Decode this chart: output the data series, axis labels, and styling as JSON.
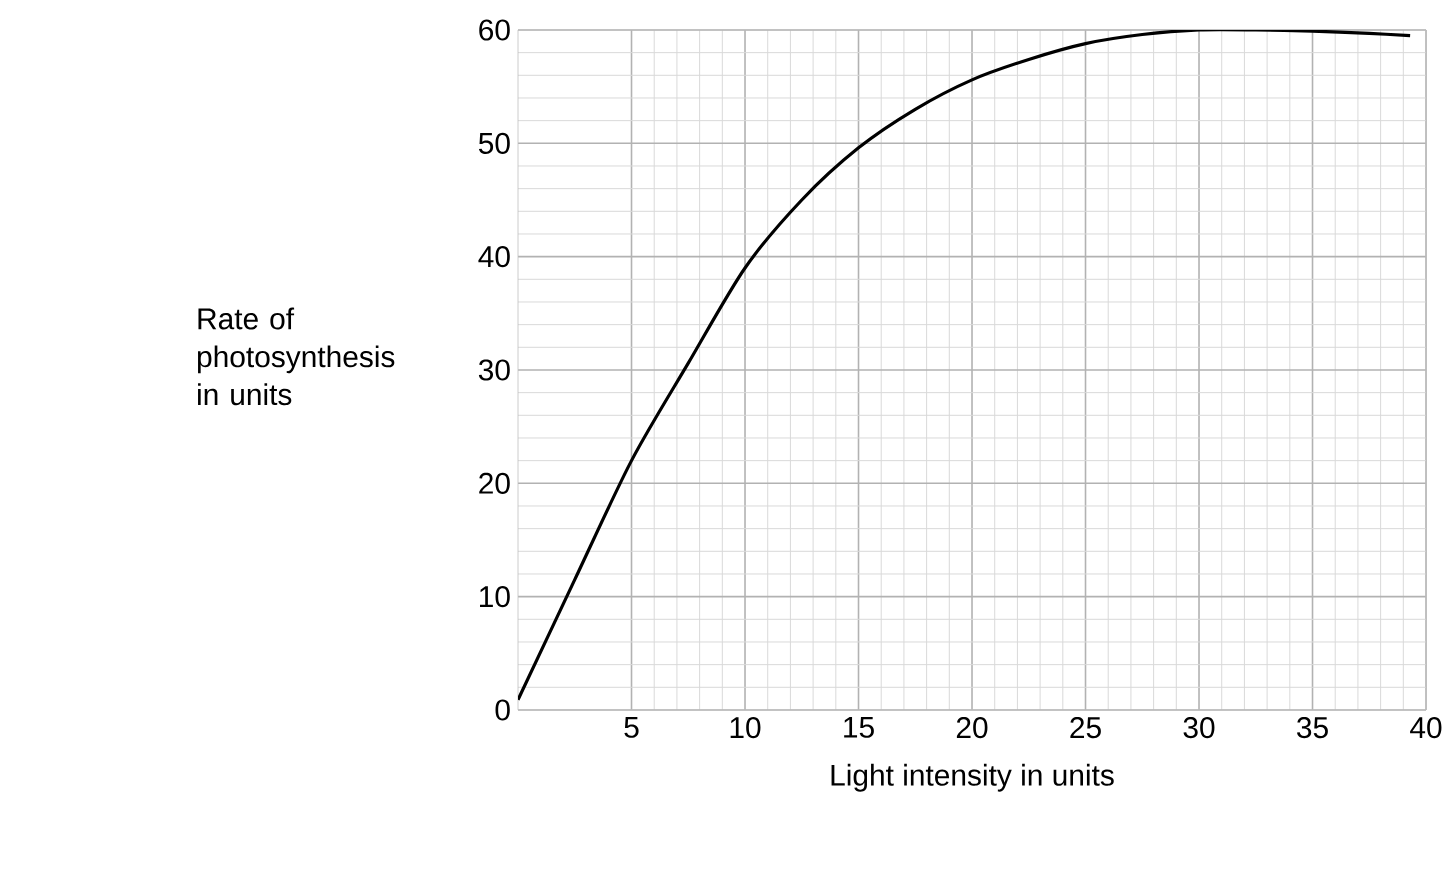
{
  "chart_data": {
    "type": "line",
    "xlabel": "Light intensity in units",
    "ylabel": "Rate of photosynthesis in units",
    "x": [
      0,
      2.5,
      5,
      7.5,
      10,
      12.5,
      15,
      17.5,
      20,
      22.5,
      25,
      27.5,
      30,
      32.5,
      35,
      37.5,
      39.3
    ],
    "series": [
      {
        "color": "#000000",
        "values": [
          0.9,
          11.5,
          22,
          30.6,
          39,
          45,
          49.6,
          53,
          55.6,
          57.4,
          58.8,
          59.6,
          60,
          60,
          59.9,
          59.7,
          59.5
        ]
      }
    ],
    "xlim": [
      0,
      40
    ],
    "ylim": [
      0,
      60
    ],
    "xticks": [
      5,
      10,
      15,
      20,
      25,
      30,
      35,
      40
    ],
    "yticks": [
      0,
      10,
      20,
      30,
      40,
      50,
      60
    ],
    "grid": true,
    "line_style": "solid"
  }
}
